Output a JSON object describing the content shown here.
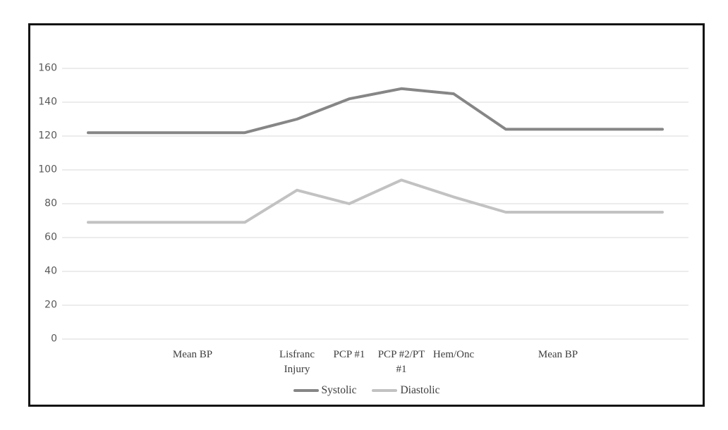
{
  "chart_data": {
    "type": "line",
    "title": "",
    "xlabel": "",
    "ylabel": "",
    "categories": [
      "",
      "",
      "Mean BP",
      "",
      "Lisfranc\nInjury",
      "PCP #1",
      "PCP #2/PT\n#1",
      "Hem/Onc",
      "",
      "Mean BP",
      "",
      ""
    ],
    "series": [
      {
        "name": "Systolic",
        "color": "#868686",
        "values": [
          122,
          122,
          122,
          122,
          130,
          142,
          148,
          145,
          124,
          124,
          124,
          124
        ]
      },
      {
        "name": "Diastolic",
        "color": "#c2c2c2",
        "values": [
          69,
          69,
          69,
          69,
          88,
          80,
          94,
          84,
          75,
          75,
          75,
          75
        ]
      }
    ],
    "yticks": [
      0,
      20,
      40,
      60,
      80,
      100,
      120,
      140,
      160
    ],
    "ylim": [
      0,
      160
    ],
    "grid": true,
    "gridline_color": "#e0e0e0",
    "legend_position": "bottom"
  }
}
